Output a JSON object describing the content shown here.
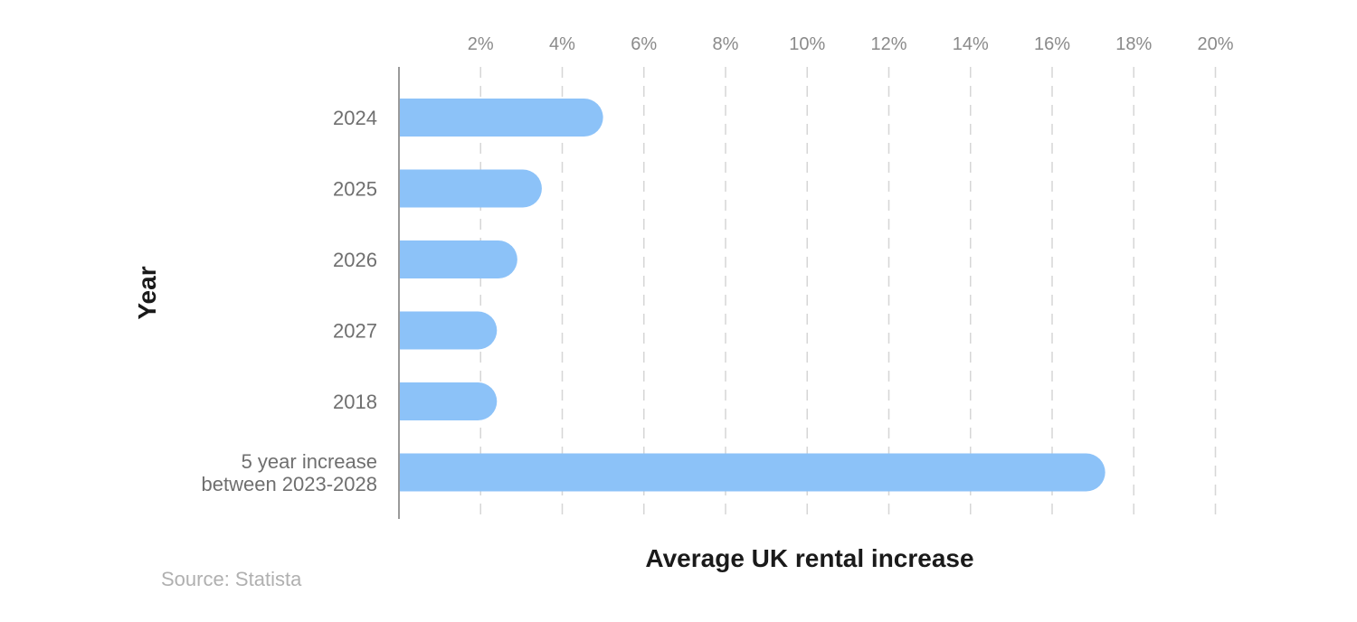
{
  "chart_data": {
    "type": "bar",
    "orientation": "horizontal",
    "categories": [
      [
        "2024"
      ],
      [
        "2025"
      ],
      [
        "2026"
      ],
      [
        "2027"
      ],
      [
        "2018"
      ],
      [
        "5 year increase",
        "between 2023-2028"
      ]
    ],
    "values": [
      5.0,
      3.5,
      2.9,
      2.4,
      2.4,
      17.3
    ],
    "xlabel": "Average UK rental increase",
    "ylabel": "Year",
    "xlim": [
      0,
      20
    ],
    "xticks": [
      2,
      4,
      6,
      8,
      10,
      12,
      14,
      16,
      18,
      20
    ],
    "tick_format_suffix": "%",
    "grid": true,
    "x_axis_position": "top",
    "colors": {
      "bar": "#8cc2f8",
      "grid": "#d6d6d6",
      "axis": "#9a9a9a"
    }
  },
  "source": "Source: Statista"
}
